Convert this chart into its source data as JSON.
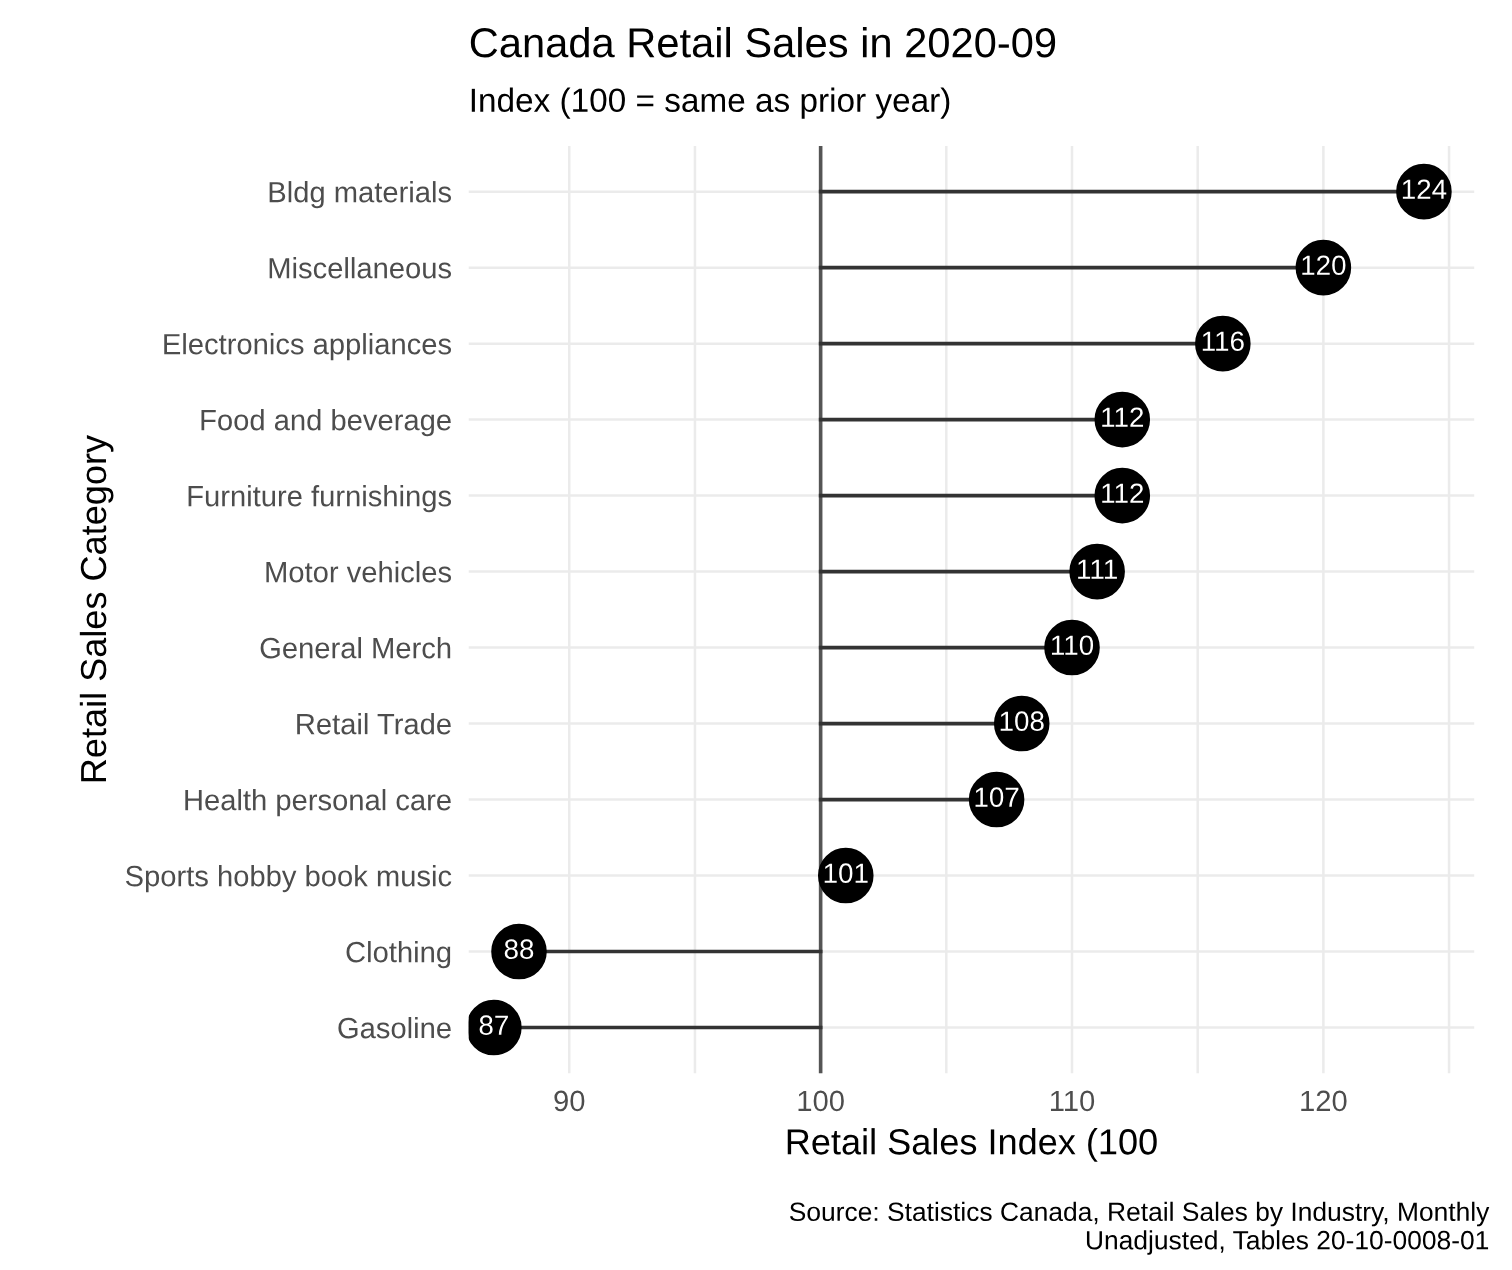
{
  "chart_data": {
    "type": "lollipop",
    "orientation": "horizontal",
    "title": "Canada Retail Sales in 2020-09",
    "subtitle": "Index (100 = same as prior year)",
    "xlabel": "Retail Sales Index (100",
    "ylabel": "Retail Sales Category",
    "annotations": [
      "Source: Statistics Canada, Retail Sales by Industry, Monthly\nUnadjusted, Tables 20-10-0008-01"
    ],
    "categories": [
      "Bldg materials",
      "Miscellaneous",
      "Electronics appliances",
      "Food and beverage",
      "Furniture furnishings",
      "Motor vehicles",
      "General Merch",
      "Retail Trade",
      "Health personal care",
      "Sports hobby book music",
      "Clothing",
      "Gasoline"
    ],
    "values": [
      124,
      120,
      116,
      112,
      112,
      111,
      110,
      108,
      107,
      101,
      88,
      87
    ],
    "color": "#000000",
    "data_labels": true,
    "xlim": [
      86,
      126
    ],
    "xticks": [
      90,
      {
        "value": 95,
        "label": null
      },
      100,
      {
        "value": 105,
        "label": null
      },
      110,
      {
        "value": 115,
        "label": null
      },
      120,
      {
        "value": 125,
        "label": null
      }
    ],
    "ref_lines": [
      {
        "axis": "x",
        "value": 100,
        "color": "#555555"
      }
    ],
    "grid": true,
    "marker": "circle"
  }
}
